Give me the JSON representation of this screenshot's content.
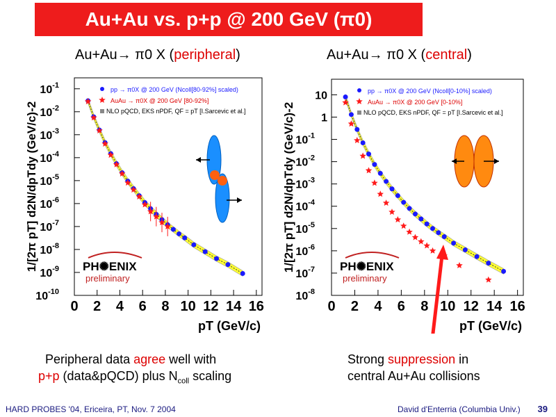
{
  "slide": {
    "title": "Au+Au vs. p+p @ 200 GeV (π0)",
    "left_heading_prefix": "Au+Au→ π0 X (",
    "left_heading_red": "peripheral",
    "left_heading_suffix": ")",
    "right_heading_prefix": "Au+Au→ π0 X (",
    "right_heading_red": "central",
    "right_heading_suffix": ")",
    "left_caption_line1_a": "Peripheral data ",
    "left_caption_line1_red": "agree",
    "left_caption_line1_b": " well with",
    "left_caption_line2_red": "p+p",
    "left_caption_line2_b": " (data&pQCD) plus N",
    "left_caption_line2_sub": "coll",
    "left_caption_line2_c": " scaling",
    "right_caption_line1_a": "Strong ",
    "right_caption_line1_red": "suppression",
    "right_caption_line1_b": " in",
    "right_caption_line2": "central Au+Au collisions",
    "footer_left": "HARD PROBES '04, Ericeira, PT, Nov. 7 2004",
    "footer_right": "David d'Enterria (Columbia Univ.)",
    "page_number": "39"
  },
  "colors": {
    "title_bg": "#ee1c1c",
    "pp_marker": "#1a1aff",
    "auau_marker": "#ff1a1a",
    "band": "#ffff33",
    "arrow": "#ff1a1a"
  },
  "chart_data": [
    {
      "type": "scatter",
      "log_y": true,
      "xlim": [
        0,
        16.5
      ],
      "ylim": [
        1e-10,
        0.3
      ],
      "x_ticks": [
        0,
        2,
        4,
        6,
        8,
        10,
        12,
        14,
        16
      ],
      "y_tick_exponents": [
        -1,
        -2,
        -3,
        -4,
        -5,
        -6,
        -7,
        -8,
        -9,
        -10
      ],
      "xlabel": "pT (GeV/c)",
      "ylabel": "1/[2π pT] d2N/dpTdy (GeV/c)-2",
      "legend": [
        "pp → π0X @ 200 GeV (Ncoll[80-92%] scaled)",
        "AuAu → π0X @ 200 GeV [80-92%]",
        "NLO pQCD, EKS nPDF, QF = pT [I.Sarcevic et al.]"
      ],
      "logo_text": "PH✺ENIX",
      "preliminary": "preliminary",
      "series": [
        {
          "name": "pp → π0X @ 200 GeV (Ncoll[80-92%] scaled)",
          "x": [
            1.2,
            1.7,
            2.2,
            2.7,
            3.2,
            3.7,
            4.2,
            4.7,
            5.2,
            5.7,
            6.2,
            6.7,
            7.2,
            7.7,
            8.2,
            8.7,
            9.2,
            9.7,
            10.5,
            11.5,
            12.5,
            13.5,
            14.8
          ],
          "y": [
            0.03,
            0.006,
            0.0016,
            0.00045,
            0.00015,
            5.5e-05,
            2.2e-05,
            9.5e-06,
            4.5e-06,
            2.2e-06,
            1.1e-06,
            6e-07,
            3.4e-07,
            2e-07,
            1.2e-07,
            7.5e-08,
            4.8e-08,
            3.2e-08,
            1.6e-08,
            8e-09,
            4e-09,
            2.2e-09,
            9e-10
          ]
        },
        {
          "name": "AuAu → π0X @ 200 GeV [80-92%]",
          "x": [
            1.2,
            1.7,
            2.2,
            2.7,
            3.2,
            3.7,
            4.2,
            4.7,
            5.2,
            5.7,
            6.2,
            6.7,
            7.2,
            7.7,
            8.2
          ],
          "y": [
            0.028,
            0.0055,
            0.0015,
            0.0004,
            0.00013,
            5e-05,
            2e-05,
            8e-06,
            4e-06,
            2e-06,
            9e-07,
            4.5e-07,
            2.7e-07,
            1.5e-07,
            1e-07
          ]
        }
      ]
    },
    {
      "type": "scatter",
      "log_y": true,
      "xlim": [
        0,
        16.5
      ],
      "ylim": [
        1e-08,
        50
      ],
      "x_ticks": [
        0,
        2,
        4,
        6,
        8,
        10,
        12,
        14,
        16
      ],
      "y_ticks": [
        "10",
        "1",
        "10-1",
        "10-2",
        "10-3",
        "10-4",
        "10-5",
        "10-6",
        "10-7",
        "10-8"
      ],
      "xlabel": "pT (GeV/c)",
      "ylabel": "1/[2π pT] d2N/dpTdy (GeV/c)-2",
      "legend": [
        "pp → π0X @ 200 GeV (Ncoll[0-10%] scaled)",
        "AuAu → π0X @ 200 GeV [0-10%]",
        "NLO pQCD, EKS nPDF, QF = pT [I.Sarcevic et al.]"
      ],
      "logo_text": "PH✺ENIX",
      "preliminary": "preliminary",
      "series": [
        {
          "name": "pp → π0X @ 200 GeV (Ncoll[0-10%] scaled)",
          "x": [
            1.2,
            1.7,
            2.2,
            2.7,
            3.2,
            3.7,
            4.2,
            4.7,
            5.2,
            5.7,
            6.2,
            6.7,
            7.2,
            7.7,
            8.2,
            8.7,
            9.2,
            9.7,
            10.5,
            11.5,
            12.5,
            13.5,
            14.8
          ],
          "y": [
            8,
            1.3,
            0.28,
            0.07,
            0.022,
            0.0075,
            0.003,
            0.0013,
            0.0006,
            0.0003,
            0.00015,
            8e-05,
            4.5e-05,
            2.7e-05,
            1.6e-05,
            1e-05,
            6.5e-06,
            4.3e-06,
            2.2e-06,
            1.1e-06,
            5.5e-07,
            2.8e-07,
            1.2e-07
          ]
        },
        {
          "name": "AuAu → π0X @ 200 GeV [0-10%]",
          "x": [
            1.2,
            1.7,
            2.2,
            2.7,
            3.2,
            3.7,
            4.2,
            4.7,
            5.2,
            5.7,
            6.2,
            6.7,
            7.2,
            7.7,
            8.2,
            8.7,
            9.7,
            11.0,
            13.5
          ],
          "y": [
            4.5,
            0.5,
            0.09,
            0.018,
            0.004,
            0.0011,
            0.00035,
            0.00014,
            5.5e-05,
            2.5e-05,
            1.3e-05,
            7e-06,
            4e-06,
            2.6e-06,
            1.7e-06,
            1e-06,
            6e-07,
            2.2e-07,
            5e-08
          ]
        }
      ]
    }
  ]
}
